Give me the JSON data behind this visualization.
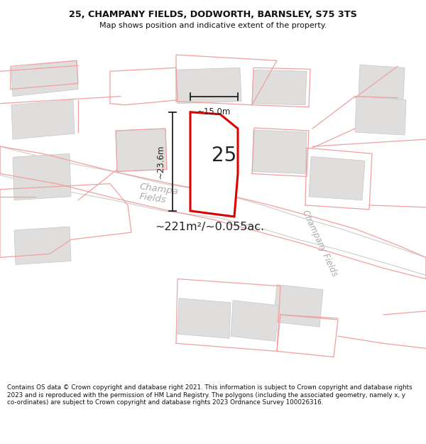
{
  "title_line1": "25, CHAMPANY FIELDS, DODWORTH, BARNSLEY, S75 3TS",
  "title_line2": "Map shows position and indicative extent of the property.",
  "footer": "Contains OS data © Crown copyright and database right 2021. This information is subject to Crown copyright and database rights 2023 and is reproduced with the permission of HM Land Registry. The polygons (including the associated geometry, namely x, y co-ordinates) are subject to Crown copyright and database rights 2023 Ordnance Survey 100026316.",
  "area_label": "~221m²/~0.055ac.",
  "house_number": "25",
  "dim_width": "~15.0m",
  "dim_height": "~23.6m",
  "map_bg": "#f5f3f0",
  "road_fill": "#ffffff",
  "road_edge": "#cccccc",
  "highlight_color": "#dd0000",
  "pink_line_color": "#f0a0a0",
  "grey_bld_fill": "#e0dedd",
  "grey_bld_edge": "#cccccc",
  "title_bg": "#ffffff",
  "footer_bg": "#ffffff",
  "road_label_color": "#aaaaaa",
  "dim_color": "#222222",
  "number_color": "#222222",
  "area_color": "#222222"
}
